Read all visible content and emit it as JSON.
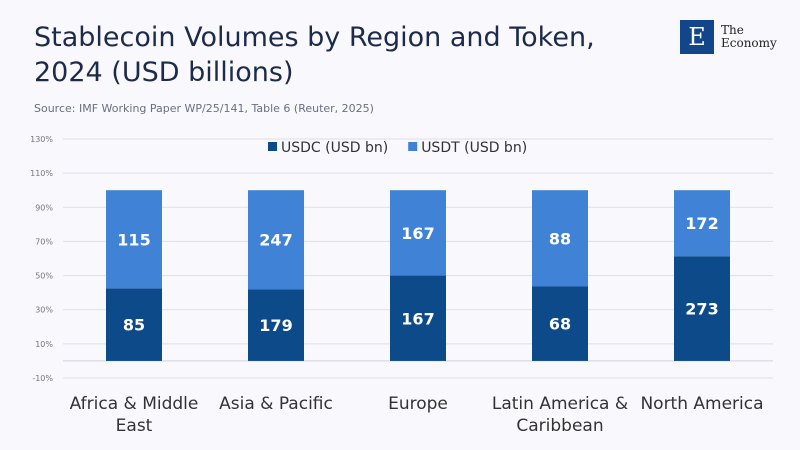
{
  "header": {
    "title": "Stablecoin Volumes by Region and Token, 2024 (USD billions)",
    "source": "Source: IMF Working Paper WP/25/141, Table 6 (Reuter, 2025)"
  },
  "logo": {
    "mark": "E",
    "line1": "The",
    "line2": "Economy"
  },
  "chart_data": {
    "type": "bar",
    "stacked": "percent",
    "categories": [
      "Africa & Middle East",
      "Asia & Pacific",
      "Europe",
      "Latin America & Caribbean",
      "North America"
    ],
    "series": [
      {
        "name": "USDC (USD bn)",
        "values": [
          85,
          179,
          167,
          68,
          273
        ],
        "color": "#0d4a8a"
      },
      {
        "name": "USDT (USD bn)",
        "values": [
          115,
          247,
          167,
          88,
          172
        ],
        "color": "#3f82d6"
      }
    ],
    "yticks": [
      "-10%",
      "10%",
      "30%",
      "50%",
      "70%",
      "90%",
      "110%",
      "130%"
    ],
    "ylim": [
      -10,
      130
    ],
    "grid": true,
    "legend": "top"
  }
}
